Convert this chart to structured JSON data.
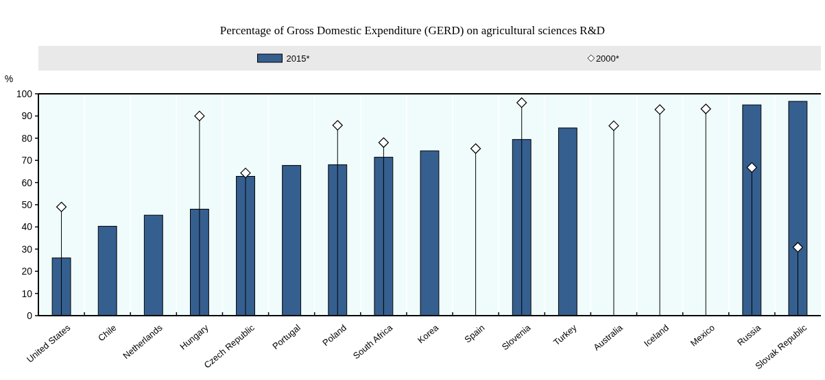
{
  "chart_data": {
    "type": "bar",
    "title": "Percentage of Gross Domestic Expenditure (GERD) on agricultural sciences R&D",
    "ylabel": "%",
    "categories": [
      "United States",
      "Chile",
      "Netherlands",
      "Hungary",
      "Czech Republic",
      "Portugal",
      "Poland",
      "South Africa",
      "Korea",
      "Spain",
      "Slovenia",
      "Turkey",
      "Australia",
      "Iceland",
      "Mexico",
      "Russia",
      "Slovak Republic"
    ],
    "series": [
      {
        "name": "2015*",
        "color": "#355f8f",
        "values": [
          26,
          40.3,
          45.3,
          48,
          62.8,
          67.7,
          68,
          71.4,
          74.3,
          null,
          79.4,
          84.6,
          null,
          null,
          null,
          95,
          96.6
        ]
      },
      {
        "name": "2000*",
        "type": "lollipop",
        "color": "#000000",
        "marker": "diamond",
        "values": [
          49,
          null,
          null,
          90,
          64.3,
          null,
          85.8,
          78,
          null,
          75.3,
          96,
          null,
          85.6,
          92.9,
          93.2,
          66.8,
          30.8
        ]
      }
    ],
    "ylim": [
      0,
      100
    ],
    "yticks": [
      0,
      10,
      20,
      30,
      40,
      50,
      60,
      70,
      80,
      90,
      100
    ],
    "legend": "top",
    "grid": false
  }
}
